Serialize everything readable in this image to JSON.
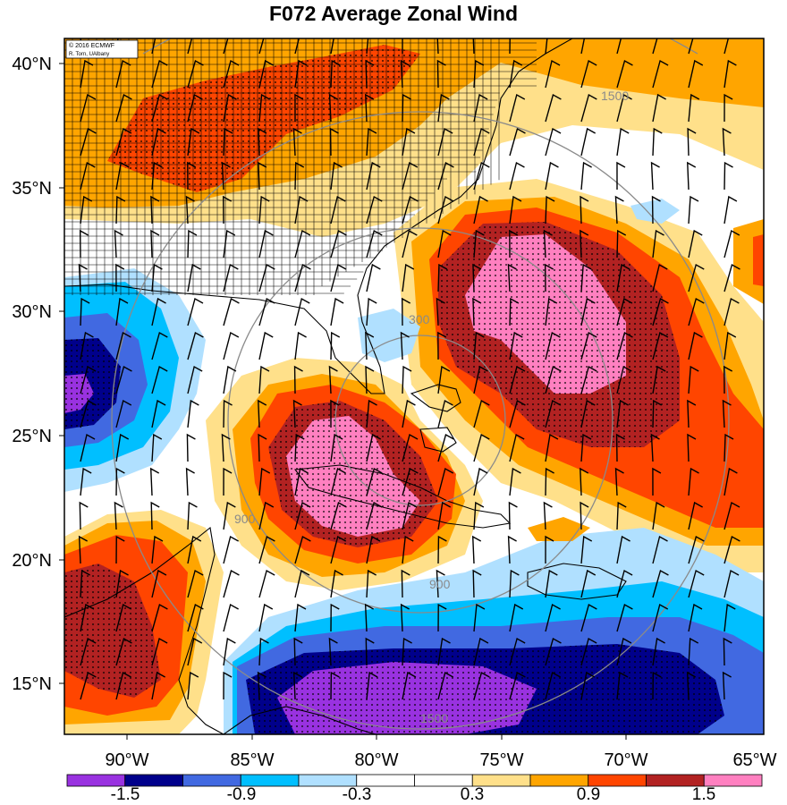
{
  "title": "F072 Average Zonal Wind",
  "credit": {
    "line1": "© 2016 ECMWF",
    "line2": "R. Torn, UAlbany"
  },
  "lat_labels": [
    "40°N",
    "35°N",
    "30°N",
    "25°N",
    "20°N",
    "15°N"
  ],
  "lon_labels": [
    "90°W",
    "85°W",
    "80°W",
    "75°W",
    "70°W",
    "65°W"
  ],
  "colorbar": {
    "labels": [
      "-1.5",
      "-0.9",
      "-0.3",
      "0.3",
      "0.9",
      "1.5"
    ],
    "colors": [
      "#9932e0",
      "#00008b",
      "#4169e1",
      "#00bfff",
      "#b0e0ff",
      "#ffffff",
      "#ffffff",
      "#ffe08a",
      "#ffa500",
      "#ff4500",
      "#b22222",
      "#ff80c0"
    ]
  },
  "contour_labels": [
    "300",
    "900",
    "1500"
  ],
  "map_extent": {
    "lon": [
      -93,
      -65
    ],
    "lat": [
      13,
      41
    ]
  }
}
